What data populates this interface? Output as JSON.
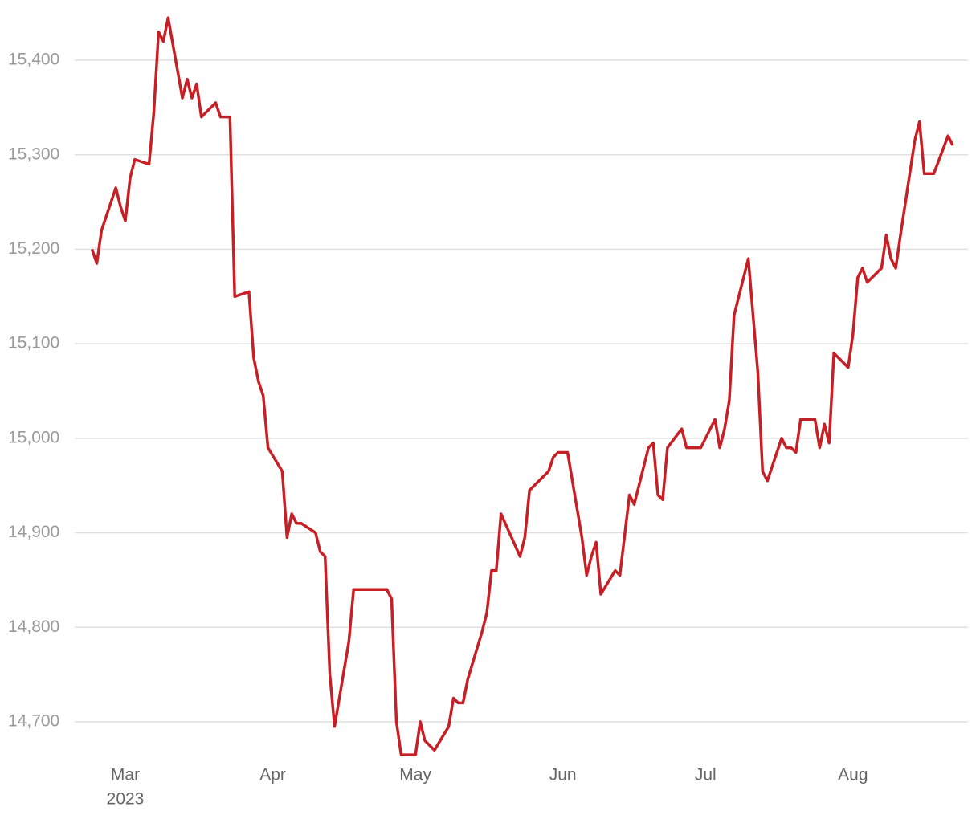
{
  "chart_data": {
    "type": "line",
    "color": "#c62026",
    "grid": true,
    "x": [
      53,
      54,
      55,
      58,
      59,
      60,
      61,
      62,
      65,
      66,
      67,
      68,
      69,
      72,
      73,
      74,
      75,
      76,
      79,
      80,
      82,
      83,
      86,
      87,
      88,
      89,
      90,
      93,
      94,
      95,
      96,
      97,
      100,
      101,
      102,
      103,
      104,
      107,
      108,
      115,
      116,
      117,
      118,
      121,
      122,
      123,
      125,
      128,
      129,
      130,
      131,
      132,
      135,
      136,
      137,
      138,
      139,
      143,
      144,
      145,
      149,
      150,
      151,
      153,
      156,
      157,
      158,
      159,
      160,
      163,
      164,
      166,
      167,
      170,
      171,
      172,
      173,
      174,
      177,
      178,
      181,
      184,
      185,
      186,
      187,
      188,
      191,
      192,
      193,
      194,
      195,
      198,
      199,
      200,
      201,
      202,
      205,
      206,
      207,
      208,
      209,
      212,
      213,
      214,
      215,
      216,
      219,
      220,
      221,
      222,
      223,
      226,
      227,
      228,
      230,
      233,
      234
    ],
    "values": [
      15200,
      15185,
      15220,
      15265,
      15245,
      15230,
      15275,
      15295,
      15290,
      15345,
      15430,
      15420,
      15445,
      15360,
      15380,
      15360,
      15375,
      15340,
      15355,
      15340,
      15340,
      15150,
      15155,
      15085,
      15060,
      15045,
      14990,
      14965,
      14895,
      14920,
      14910,
      14910,
      14900,
      14880,
      14875,
      14750,
      14695,
      14785,
      14840,
      14840,
      14830,
      14700,
      14665,
      14665,
      14700,
      14680,
      14670,
      14695,
      14725,
      14720,
      14720,
      14745,
      14795,
      14815,
      14860,
      14860,
      14920,
      14875,
      14895,
      14945,
      14965,
      14980,
      14985,
      14985,
      14895,
      14855,
      14875,
      14890,
      14835,
      14860,
      14855,
      14940,
      14930,
      14990,
      14995,
      14940,
      14935,
      14990,
      15010,
      14990,
      14990,
      15020,
      14990,
      15010,
      15040,
      15130,
      15190,
      15130,
      15070,
      14965,
      14955,
      15000,
      14990,
      14990,
      14985,
      15020,
      15020,
      14990,
      15015,
      14995,
      15090,
      15075,
      15110,
      15170,
      15180,
      15165,
      15180,
      15215,
      15190,
      15180,
      15215,
      15315,
      15335,
      15280,
      15280,
      15320,
      15310
    ],
    "xlim": [
      45,
      236
    ],
    "xticks": [
      {
        "value": 60,
        "label": "Mar"
      },
      {
        "value": 91,
        "label": "Apr"
      },
      {
        "value": 121,
        "label": "May"
      },
      {
        "value": 152,
        "label": "Jun"
      },
      {
        "value": 182,
        "label": "Jul"
      },
      {
        "value": 213,
        "label": "Aug"
      }
    ],
    "xtick_year": "2023",
    "ylim": [
      14650,
      15460
    ],
    "yticks": [
      {
        "value": 14700,
        "label": "14,700"
      },
      {
        "value": 14800,
        "label": "14,800"
      },
      {
        "value": 14900,
        "label": "14,900"
      },
      {
        "value": 15000,
        "label": "15,000"
      },
      {
        "value": 15100,
        "label": "15,100"
      },
      {
        "value": 15200,
        "label": "15,200"
      },
      {
        "value": 15300,
        "label": "15,300"
      },
      {
        "value": 15400,
        "label": "15,400"
      }
    ]
  }
}
